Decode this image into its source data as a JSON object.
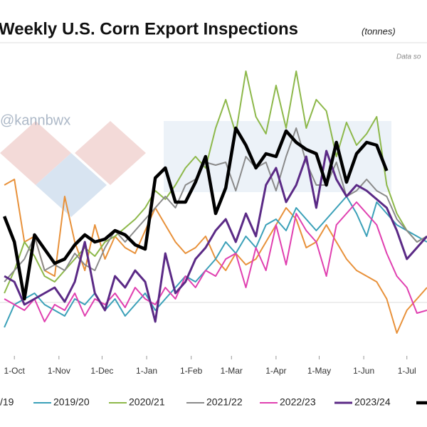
{
  "chart_data": {
    "type": "line",
    "title": "Weekly U.S. Corn Export Inspections",
    "subtitle": "(tonnes)",
    "source_note": "Data so",
    "watermark": "@kannbwx",
    "x": [
      -7,
      0,
      7,
      14,
      21,
      28,
      35,
      42,
      49,
      56,
      63,
      70,
      77,
      84,
      91,
      98,
      105,
      112,
      119,
      126,
      133,
      140,
      147,
      154,
      161,
      168,
      175,
      182,
      189,
      196,
      203,
      210,
      217,
      224,
      231,
      238,
      245,
      252,
      259,
      266,
      273,
      280,
      287
    ],
    "xlim": [
      -10,
      287
    ],
    "xticks": [
      {
        "value": 0,
        "label": "1-Oct"
      },
      {
        "value": 31,
        "label": "1-Nov"
      },
      {
        "value": 61,
        "label": "1-Dec"
      },
      {
        "value": 92,
        "label": "1-Jan"
      },
      {
        "value": 123,
        "label": "1-Feb"
      },
      {
        "value": 151,
        "label": "1-Mar"
      },
      {
        "value": 182,
        "label": "1-Apr"
      },
      {
        "value": 212,
        "label": "1-May"
      },
      {
        "value": 243,
        "label": "1-Jun"
      },
      {
        "value": 273,
        "label": "1-Jul"
      }
    ],
    "ylim": [
      0,
      110
    ],
    "series": [
      {
        "name": "/19",
        "color": "#e8913a",
        "width": 2,
        "values": [
          60,
          62,
          40,
          42,
          30,
          28,
          56,
          40,
          30,
          46,
          34,
          42,
          38,
          36,
          44,
          52,
          46,
          40,
          36,
          38,
          42,
          34,
          30,
          36,
          32,
          34,
          40,
          46,
          52,
          48,
          38,
          40,
          46,
          40,
          34,
          30,
          28,
          26,
          20,
          8,
          16,
          20,
          24
        ]
      },
      {
        "name": "2019/20",
        "color": "#3aa0b8",
        "width": 2,
        "values": [
          10,
          18,
          20,
          22,
          18,
          16,
          14,
          20,
          18,
          22,
          16,
          20,
          14,
          18,
          22,
          16,
          20,
          24,
          28,
          26,
          30,
          34,
          40,
          36,
          42,
          38,
          46,
          48,
          44,
          52,
          48,
          44,
          48,
          52,
          56,
          50,
          42,
          54,
          50,
          46,
          44,
          42,
          40
        ]
      },
      {
        "name": "2020/21",
        "color": "#8db84a",
        "width": 2,
        "values": [
          22,
          30,
          40,
          35,
          28,
          26,
          30,
          34,
          38,
          35,
          40,
          42,
          45,
          48,
          52,
          58,
          55,
          60,
          66,
          70,
          66,
          80,
          90,
          78,
          100,
          84,
          78,
          95,
          80,
          100,
          80,
          90,
          86,
          70,
          82,
          74,
          78,
          84,
          60,
          50,
          44,
          40,
          42
        ]
      },
      {
        "name": "2021/22",
        "color": "#8a8a8a",
        "width": 2,
        "values": [
          26,
          30,
          34,
          42,
          30,
          32,
          30,
          36,
          32,
          30,
          38,
          44,
          40,
          44,
          48,
          52,
          56,
          52,
          60,
          62,
          68,
          67,
          68,
          58,
          70,
          66,
          68,
          58,
          70,
          80,
          68,
          60,
          60,
          68,
          56,
          58,
          62,
          58,
          56,
          48,
          44,
          40,
          42
        ]
      },
      {
        "name": "2022/23",
        "color": "#e040b0",
        "width": 2,
        "values": [
          20,
          18,
          16,
          20,
          12,
          18,
          16,
          22,
          14,
          20,
          18,
          22,
          17,
          24,
          20,
          18,
          24,
          20,
          28,
          24,
          30,
          28,
          34,
          36,
          24,
          38,
          30,
          46,
          32,
          50,
          44,
          40,
          28,
          46,
          50,
          54,
          50,
          46,
          36,
          28,
          24,
          15,
          16
        ]
      },
      {
        "name": "2023/24",
        "color": "#5b2a86",
        "width": 3,
        "values": [
          28,
          26,
          18,
          20,
          22,
          24,
          19,
          26,
          40,
          22,
          16,
          28,
          24,
          30,
          26,
          12,
          36,
          22,
          26,
          34,
          38,
          44,
          48,
          40,
          50,
          42,
          60,
          66,
          54,
          60,
          70,
          52,
          72,
          62,
          56,
          60,
          58,
          55,
          52,
          44,
          34,
          38,
          42
        ]
      },
      {
        "color": "#000000",
        "width": 4.5,
        "values": [
          49,
          40,
          20,
          42.5,
          37.5,
          32.5,
          34,
          39,
          42.5,
          40,
          41,
          44,
          42.5,
          39,
          37.5,
          62.5,
          66,
          54,
          54,
          61,
          70,
          50,
          59,
          80,
          74,
          66,
          71,
          70,
          79,
          75,
          72.5,
          71,
          60,
          75,
          61,
          71,
          75,
          74,
          65,
          null,
          null,
          null,
          null
        ]
      }
    ]
  }
}
